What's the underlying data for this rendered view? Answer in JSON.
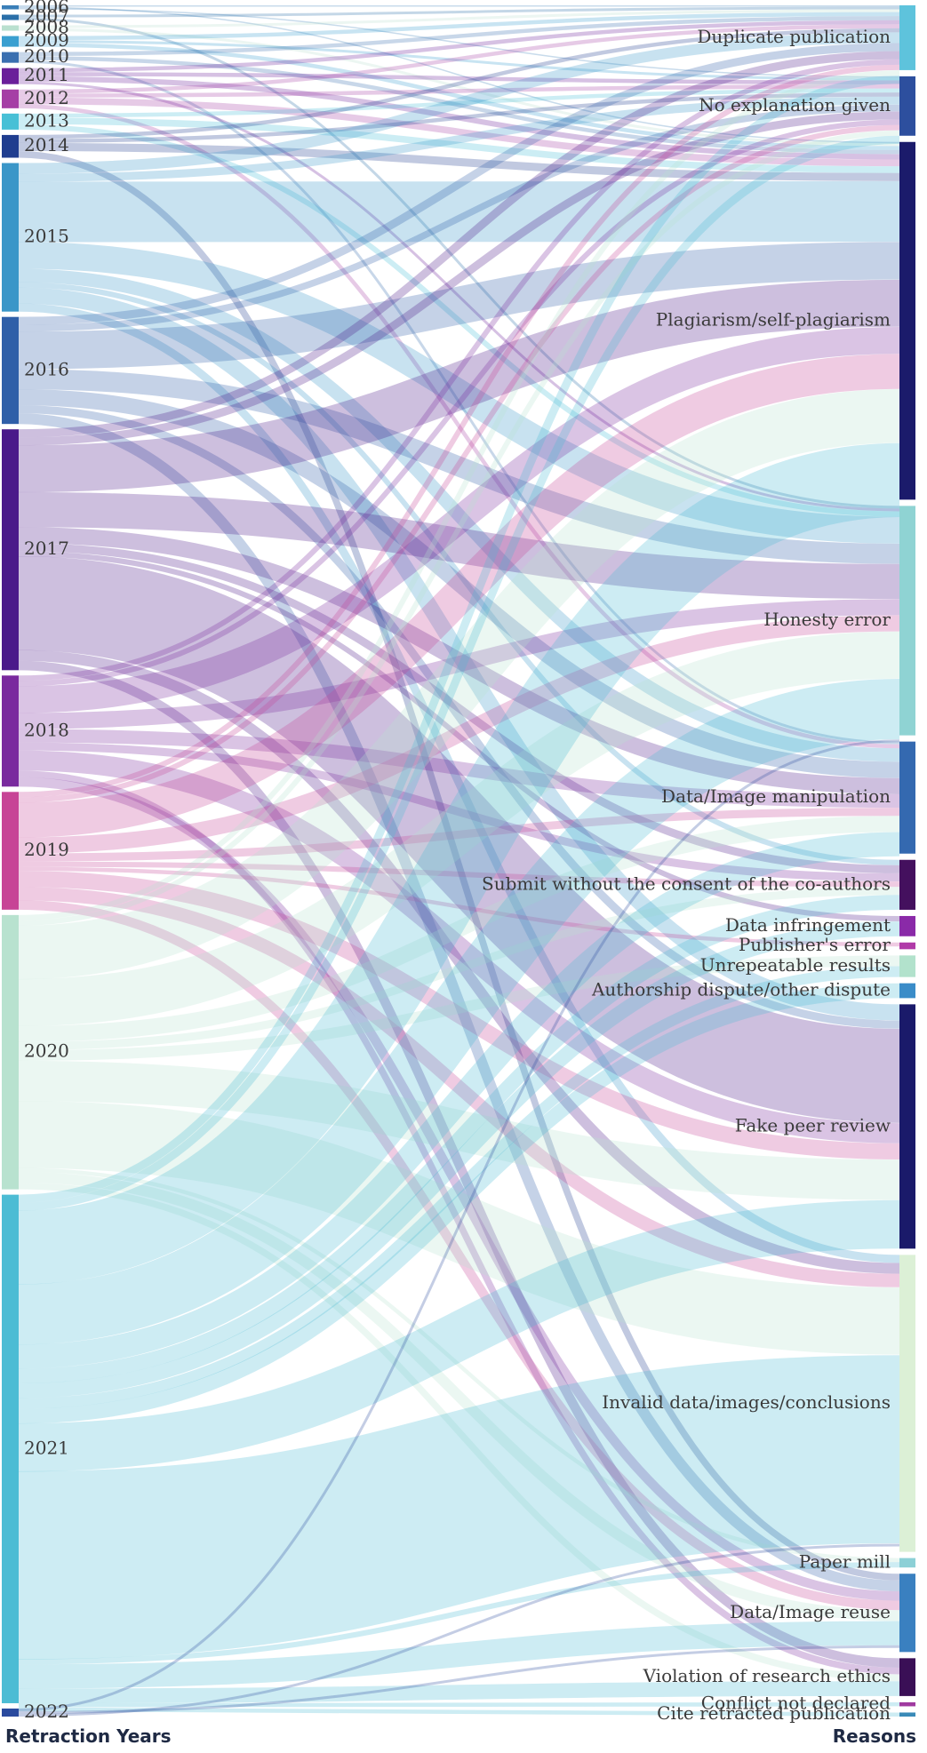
{
  "axis_titles": {
    "left": "Retraction  Years",
    "right": "Reasons"
  },
  "chart_data": {
    "type": "sankey",
    "title": "",
    "left_nodes": [
      {
        "label": "2006",
        "color": "#3a7fb8",
        "value": 0.3
      },
      {
        "label": "2007",
        "color": "#2a6fa8",
        "value": 0.4
      },
      {
        "label": "2008",
        "color": "#b9e0cf",
        "value": 0.4
      },
      {
        "label": "2009",
        "color": "#3a9fd0",
        "value": 0.8
      },
      {
        "label": "2010",
        "color": "#3a6fb0",
        "value": 0.8
      },
      {
        "label": "2011",
        "color": "#6a1f9a",
        "value": 1.2
      },
      {
        "label": "2012",
        "color": "#a53fa5",
        "value": 1.4
      },
      {
        "label": "2013",
        "color": "#48c0d6",
        "value": 1.2
      },
      {
        "label": "2014",
        "color": "#1f3d8f",
        "value": 1.7
      },
      {
        "label": "2015",
        "color": "#3a96c8",
        "value": 11.1
      },
      {
        "label": "2016",
        "color": "#2f5fa8",
        "value": 8.0
      },
      {
        "label": "2017",
        "color": "#4a1a8a",
        "value": 18.0
      },
      {
        "label": "2018",
        "color": "#7a2a9e",
        "value": 8.3
      },
      {
        "label": "2019",
        "color": "#c74496",
        "value": 8.8
      },
      {
        "label": "2020",
        "color": "#b8e2cf",
        "value": 20.5
      },
      {
        "label": "2021",
        "color": "#4cbcd4",
        "value": 38.0
      },
      {
        "label": "2022",
        "color": "#2a4a9e",
        "value": 0.6
      }
    ],
    "right_nodes": [
      {
        "label": "Duplicate publication",
        "color": "#5ec3dc",
        "value": 4.8
      },
      {
        "label": "No explanation given",
        "color": "#2d4f9e",
        "value": 4.4
      },
      {
        "label": "Plagiarism/self-plagiarism",
        "color": "#1b1b6b",
        "value": 26.5
      },
      {
        "label": "Honesty error",
        "color": "#8fd3d3",
        "value": 17.0
      },
      {
        "label": "Data/Image manipulation",
        "color": "#3469b0",
        "value": 8.3
      },
      {
        "label": "Submit without the consent of the co-authors",
        "color": "#44105e",
        "value": 3.7
      },
      {
        "label": "Data infringement",
        "color": "#8a2aa8",
        "value": 1.5
      },
      {
        "label": "Publisher's error",
        "color": "#b03aa8",
        "value": 0.5
      },
      {
        "label": "Unrepeatable results",
        "color": "#b2e2cc",
        "value": 1.6
      },
      {
        "label": "Authorship dispute/other dispute",
        "color": "#3a8cc8",
        "value": 1.1
      },
      {
        "label": "Fake peer review",
        "color": "#1a1a6a",
        "value": 18.1
      },
      {
        "label": "Invalid data/images/conclusions",
        "color": "#dcf0d6",
        "value": 22.0
      },
      {
        "label": "Paper mill",
        "color": "#8cd0d6",
        "value": 0.7
      },
      {
        "label": "Data/Image reuse",
        "color": "#3a80c0",
        "value": 5.8
      },
      {
        "label": "Violation of research ethics",
        "color": "#3a0f56",
        "value": 2.8
      },
      {
        "label": "Conflict not declared",
        "color": "#a03aa0",
        "value": 0.3
      },
      {
        "label": "Cite retracted publication",
        "color": "#3a8ab8",
        "value": 0.3
      }
    ],
    "links": [
      [
        "2006",
        "Duplicate publication",
        0.1
      ],
      [
        "2006",
        "Plagiarism/self-plagiarism",
        0.1
      ],
      [
        "2006",
        "No explanation given",
        0.1
      ],
      [
        "2007",
        "Duplicate publication",
        0.2
      ],
      [
        "2007",
        "Honesty error",
        0.2
      ],
      [
        "2008",
        "Duplicate publication",
        0.2
      ],
      [
        "2008",
        "Plagiarism/self-plagiarism",
        0.2
      ],
      [
        "2009",
        "Duplicate publication",
        0.3
      ],
      [
        "2009",
        "No explanation given",
        0.2
      ],
      [
        "2009",
        "Plagiarism/self-plagiarism",
        0.3
      ],
      [
        "2010",
        "Duplicate publication",
        0.3
      ],
      [
        "2010",
        "Plagiarism/self-plagiarism",
        0.3
      ],
      [
        "2010",
        "Data/Image manipulation",
        0.2
      ],
      [
        "2011",
        "Duplicate publication",
        0.3
      ],
      [
        "2011",
        "No explanation given",
        0.3
      ],
      [
        "2011",
        "Plagiarism/self-plagiarism",
        0.4
      ],
      [
        "2011",
        "Honesty error",
        0.2
      ],
      [
        "2012",
        "Duplicate publication",
        0.3
      ],
      [
        "2012",
        "No explanation given",
        0.3
      ],
      [
        "2012",
        "Plagiarism/self-plagiarism",
        0.5
      ],
      [
        "2012",
        "Data/Image manipulation",
        0.3
      ],
      [
        "2013",
        "No explanation given",
        0.3
      ],
      [
        "2013",
        "Plagiarism/self-plagiarism",
        0.5
      ],
      [
        "2013",
        "Honesty error",
        0.4
      ],
      [
        "2014",
        "Duplicate publication",
        0.3
      ],
      [
        "2014",
        "No explanation given",
        0.3
      ],
      [
        "2014",
        "Plagiarism/self-plagiarism",
        0.6
      ],
      [
        "2014",
        "Data/Image reuse",
        0.5
      ],
      [
        "2015",
        "Duplicate publication",
        0.8
      ],
      [
        "2015",
        "No explanation given",
        0.6
      ],
      [
        "2015",
        "Plagiarism/self-plagiarism",
        4.5
      ],
      [
        "2015",
        "Honesty error",
        2.0
      ],
      [
        "2015",
        "Data/Image manipulation",
        1.0
      ],
      [
        "2015",
        "Submit without the consent of the co-authors",
        0.4
      ],
      [
        "2015",
        "Fake peer review",
        1.2
      ],
      [
        "2015",
        "Invalid data/images/conclusions",
        0.6
      ],
      [
        "2016",
        "Duplicate publication",
        0.6
      ],
      [
        "2016",
        "No explanation given",
        0.5
      ],
      [
        "2016",
        "Plagiarism/self-plagiarism",
        2.8
      ],
      [
        "2016",
        "Honesty error",
        1.5
      ],
      [
        "2016",
        "Data/Image manipulation",
        1.2
      ],
      [
        "2016",
        "Fake peer review",
        0.6
      ],
      [
        "2016",
        "Data/Image reuse",
        0.8
      ],
      [
        "2017",
        "Duplicate publication",
        0.6
      ],
      [
        "2017",
        "No explanation given",
        0.6
      ],
      [
        "2017",
        "Plagiarism/self-plagiarism",
        3.5
      ],
      [
        "2017",
        "Honesty error",
        2.6
      ],
      [
        "2017",
        "Data/Image manipulation",
        1.2
      ],
      [
        "2017",
        "Submit without the consent of the co-authors",
        0.6
      ],
      [
        "2017",
        "Data infringement",
        0.4
      ],
      [
        "2017",
        "Fake peer review",
        7.0
      ],
      [
        "2017",
        "Invalid data/images/conclusions",
        0.8
      ],
      [
        "2017",
        "Violation of research ethics",
        0.7
      ],
      [
        "2018",
        "Duplicate publication",
        0.4
      ],
      [
        "2018",
        "No explanation given",
        0.4
      ],
      [
        "2018",
        "Plagiarism/self-plagiarism",
        2.0
      ],
      [
        "2018",
        "Honesty error",
        1.2
      ],
      [
        "2018",
        "Data/Image manipulation",
        1.0
      ],
      [
        "2018",
        "Submit without the consent of the co-authors",
        0.6
      ],
      [
        "2018",
        "Fake peer review",
        1.5
      ],
      [
        "2018",
        "Violation of research ethics",
        0.5
      ],
      [
        "2018",
        "Data/Image reuse",
        0.7
      ],
      [
        "2019",
        "Duplicate publication",
        0.4
      ],
      [
        "2019",
        "No explanation given",
        0.4
      ],
      [
        "2019",
        "Plagiarism/self-plagiarism",
        2.6
      ],
      [
        "2019",
        "Honesty error",
        1.2
      ],
      [
        "2019",
        "Data/Image manipulation",
        0.6
      ],
      [
        "2019",
        "Submit without the consent of the co-authors",
        0.4
      ],
      [
        "2019",
        "Publisher's error",
        0.3
      ],
      [
        "2019",
        "Fake peer review",
        1.2
      ],
      [
        "2019",
        "Invalid data/images/conclusions",
        1.0
      ],
      [
        "2019",
        "Data/Image reuse",
        0.7
      ],
      [
        "2020",
        "Duplicate publication",
        0.4
      ],
      [
        "2020",
        "No explanation given",
        0.4
      ],
      [
        "2020",
        "Plagiarism/self-plagiarism",
        4.0
      ],
      [
        "2020",
        "Honesty error",
        3.5
      ],
      [
        "2020",
        "Data/Image manipulation",
        1.2
      ],
      [
        "2020",
        "Submit without the consent of the co-authors",
        0.6
      ],
      [
        "2020",
        "Unrepeatable results",
        0.8
      ],
      [
        "2020",
        "Fake peer review",
        3.0
      ],
      [
        "2020",
        "Invalid data/images/conclusions",
        5.0
      ],
      [
        "2020",
        "Paper mill",
        0.3
      ],
      [
        "2020",
        "Data/Image reuse",
        0.8
      ],
      [
        "2020",
        "Violation of research ethics",
        0.5
      ],
      [
        "2021",
        "Duplicate publication",
        0.6
      ],
      [
        "2021",
        "No explanation given",
        0.6
      ],
      [
        "2021",
        "Plagiarism/self-plagiarism",
        5.5
      ],
      [
        "2021",
        "Honesty error",
        4.5
      ],
      [
        "2021",
        "Data/Image manipulation",
        1.8
      ],
      [
        "2021",
        "Submit without the consent of the co-authors",
        1.1
      ],
      [
        "2021",
        "Data infringement",
        1.1
      ],
      [
        "2021",
        "Unrepeatable results",
        0.8
      ],
      [
        "2021",
        "Authorship dispute/other dispute",
        1.1
      ],
      [
        "2021",
        "Fake peer review",
        3.6
      ],
      [
        "2021",
        "Invalid data/images/conclusions",
        14.0
      ],
      [
        "2021",
        "Paper mill",
        0.4
      ],
      [
        "2021",
        "Data/Image reuse",
        1.8
      ],
      [
        "2021",
        "Violation of research ethics",
        1.1
      ],
      [
        "2021",
        "Conflict not declared",
        0.3
      ],
      [
        "2021",
        "Cite retracted publication",
        0.3
      ],
      [
        "2022",
        "Honesty error",
        0.2
      ],
      [
        "2022",
        "Data/Image reuse",
        0.2
      ],
      [
        "2022",
        "Invalid data/images/conclusions",
        0.2
      ]
    ]
  }
}
